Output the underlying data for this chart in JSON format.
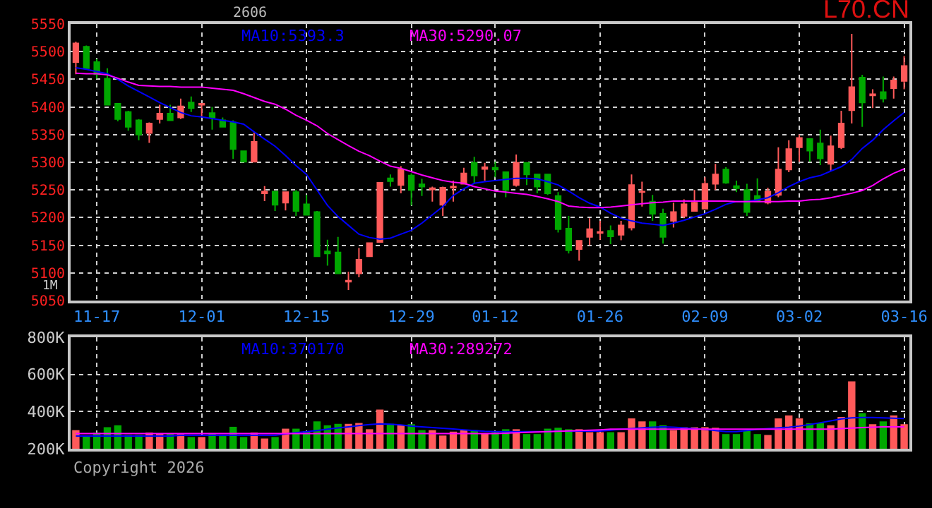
{
  "chart_data": [
    {
      "type": "candlestick",
      "title": "L70.CN",
      "subtitle": "2606",
      "annotations": [
        "1M"
      ],
      "categories": [
        null,
        null,
        "11-17",
        null,
        null,
        null,
        null,
        null,
        null,
        null,
        null,
        null,
        "12-01",
        null,
        null,
        null,
        null,
        null,
        null,
        null,
        null,
        null,
        "12-15",
        null,
        null,
        null,
        null,
        null,
        null,
        null,
        null,
        null,
        "12-29",
        null,
        null,
        null,
        null,
        null,
        null,
        null,
        "01-12",
        null,
        null,
        null,
        null,
        null,
        null,
        null,
        null,
        null,
        "01-26",
        null,
        null,
        null,
        null,
        null,
        null,
        null,
        null,
        null,
        "02-09",
        null,
        null,
        null,
        null,
        null,
        null,
        null,
        null,
        "03-02",
        null,
        null,
        null,
        null,
        null,
        null,
        null,
        null,
        null,
        "03-16"
      ],
      "ohlc": [
        [
          5481,
          5518,
          5459,
          5515
        ],
        [
          5509,
          5511,
          5467,
          5470
        ],
        [
          5481,
          5487,
          5451,
          5459
        ],
        [
          5451,
          5470,
          5404,
          5404
        ],
        [
          5406,
          5406,
          5374,
          5378
        ],
        [
          5391,
          5393,
          5357,
          5364
        ],
        [
          5376,
          5378,
          5340,
          5350
        ],
        [
          5353,
          5372,
          5335,
          5370
        ],
        [
          5378,
          5404,
          5370,
          5388
        ],
        [
          5388,
          5404,
          5376,
          5376
        ],
        [
          5381,
          5415,
          5378,
          5401
        ],
        [
          5408,
          5419,
          5391,
          5398
        ],
        [
          5404,
          5406,
          5382,
          5406
        ],
        [
          5389,
          5400,
          5359,
          5381
        ],
        [
          5376,
          5381,
          5364,
          5364
        ],
        [
          5372,
          5376,
          5306,
          5324
        ],
        [
          5320,
          5320,
          5301,
          5301
        ],
        [
          5301,
          5354,
          5301,
          5337
        ],
        [
          5244,
          5257,
          5230,
          5247
        ],
        [
          5247,
          5247,
          5212,
          5223
        ],
        [
          5227,
          5246,
          5213,
          5246
        ],
        [
          5246,
          5250,
          5203,
          5212
        ],
        [
          5224,
          5241,
          5205,
          5205
        ],
        [
          5210,
          5212,
          5130,
          5130
        ],
        [
          5139,
          5160,
          5113,
          5135
        ],
        [
          5137,
          5165,
          5099,
          5099
        ],
        [
          5084,
          5102,
          5069,
          5086
        ],
        [
          5099,
          5145,
          5092,
          5124
        ],
        [
          5130,
          5154,
          5130,
          5154
        ],
        [
          5156,
          5263,
          5156,
          5263
        ],
        [
          5271,
          5278,
          5256,
          5266
        ],
        [
          5259,
          5293,
          5244,
          5287
        ],
        [
          5276,
          5280,
          5222,
          5250
        ],
        [
          5260,
          5270,
          5239,
          5256
        ],
        [
          5251,
          5256,
          5229,
          5253
        ],
        [
          5223,
          5256,
          5203,
          5254
        ],
        [
          5254,
          5267,
          5229,
          5256
        ],
        [
          5261,
          5290,
          5261,
          5280
        ],
        [
          5299,
          5310,
          5263,
          5276
        ],
        [
          5288,
          5299,
          5267,
          5291
        ],
        [
          5290,
          5301,
          5273,
          5287
        ],
        [
          5282,
          5282,
          5237,
          5250
        ],
        [
          5259,
          5314,
          5256,
          5299
        ],
        [
          5299,
          5299,
          5259,
          5278
        ],
        [
          5278,
          5278,
          5244,
          5256
        ],
        [
          5278,
          5278,
          5241,
          5244
        ],
        [
          5239,
          5246,
          5173,
          5179
        ],
        [
          5180,
          5203,
          5135,
          5141
        ],
        [
          5143,
          5158,
          5122,
          5158
        ],
        [
          5165,
          5199,
          5150,
          5179
        ],
        [
          5172,
          5194,
          5160,
          5174
        ],
        [
          5176,
          5186,
          5152,
          5166
        ],
        [
          5169,
          5194,
          5159,
          5186
        ],
        [
          5182,
          5278,
          5177,
          5259
        ],
        [
          5246,
          5265,
          5220,
          5247
        ],
        [
          5229,
          5241,
          5194,
          5207
        ],
        [
          5207,
          5216,
          5153,
          5165
        ],
        [
          5194,
          5227,
          5182,
          5210
        ],
        [
          5203,
          5233,
          5199,
          5224
        ],
        [
          5212,
          5250,
          5212,
          5227
        ],
        [
          5216,
          5273,
          5216,
          5261
        ],
        [
          5261,
          5297,
          5250,
          5278
        ],
        [
          5287,
          5291,
          5261,
          5263
        ],
        [
          5257,
          5267,
          5246,
          5253
        ],
        [
          5250,
          5261,
          5203,
          5210
        ],
        [
          5239,
          5271,
          5229,
          5229
        ],
        [
          5227,
          5254,
          5224,
          5247
        ],
        [
          5241,
          5327,
          5237,
          5287
        ],
        [
          5287,
          5340,
          5282,
          5324
        ],
        [
          5327,
          5350,
          5301,
          5344
        ],
        [
          5342,
          5342,
          5301,
          5321
        ],
        [
          5334,
          5359,
          5295,
          5307
        ],
        [
          5297,
          5348,
          5284,
          5329
        ],
        [
          5327,
          5393,
          5324,
          5370
        ],
        [
          5394,
          5532,
          5370,
          5436
        ],
        [
          5453,
          5458,
          5364,
          5408
        ],
        [
          5421,
          5432,
          5398,
          5423
        ],
        [
          5427,
          5455,
          5408,
          5415
        ],
        [
          5434,
          5455,
          5415,
          5448
        ],
        [
          5447,
          5492,
          5432,
          5474
        ]
      ],
      "colors": [
        "#ff5a5a",
        "#00a800",
        "#00a800",
        "#00a800",
        "#00a800",
        "#00a800",
        "#00a800",
        "#ff5a5a",
        "#ff5a5a",
        "#00a800",
        "#ff5a5a",
        "#00a800",
        "#ff5a5a",
        "#00a800",
        "#00a800",
        "#00a800",
        "#00a800",
        "#ff5a5a",
        "#ff5a5a",
        "#00a800",
        "#ff5a5a",
        "#00a800",
        "#00a800",
        "#00a800",
        "#00a800",
        "#00a800",
        "#ff5a5a",
        "#ff5a5a",
        "#ff5a5a",
        "#ff5a5a",
        "#00a800",
        "#ff5a5a",
        "#00a800",
        "#00a800",
        "#ff5a5a",
        "#ff5a5a",
        "#ff5a5a",
        "#ff5a5a",
        "#00a800",
        "#ff5a5a",
        "#00a800",
        "#00a800",
        "#ff5a5a",
        "#00a800",
        "#00a800",
        "#00a800",
        "#00a800",
        "#00a800",
        "#ff5a5a",
        "#ff5a5a",
        "#ff5a5a",
        "#00a800",
        "#ff5a5a",
        "#ff5a5a",
        "#ff5a5a",
        "#00a800",
        "#00a800",
        "#ff5a5a",
        "#ff5a5a",
        "#ff5a5a",
        "#ff5a5a",
        "#ff5a5a",
        "#00a800",
        "#00a800",
        "#00a800",
        "#00a800",
        "#ff5a5a",
        "#ff5a5a",
        "#ff5a5a",
        "#ff5a5a",
        "#00a800",
        "#00a800",
        "#ff5a5a",
        "#ff5a5a",
        "#ff5a5a",
        "#00a800",
        "#ff5a5a",
        "#00a800",
        "#ff5a5a",
        "#ff5a5a"
      ],
      "series": [
        {
          "type": "line",
          "name": "MA10:5393.3",
          "color": "#0000ff",
          "values": [
            5471,
            5468,
            5464,
            5460,
            5450,
            5438,
            5428,
            5418,
            5408,
            5399,
            5390,
            5384,
            5382,
            5379,
            5376,
            5373,
            5369,
            5355,
            5342,
            5329,
            5312,
            5294,
            5278,
            5250,
            5222,
            5202,
            5186,
            5170,
            5164,
            5161,
            5163,
            5170,
            5177,
            5190,
            5205,
            5220,
            5240,
            5252,
            5262,
            5265,
            5267,
            5269,
            5271,
            5271,
            5270,
            5265,
            5259,
            5248,
            5236,
            5226,
            5219,
            5208,
            5199,
            5194,
            5190,
            5188,
            5186,
            5190,
            5195,
            5201,
            5207,
            5215,
            5224,
            5229,
            5229,
            5232,
            5236,
            5245,
            5256,
            5265,
            5272,
            5276,
            5284,
            5292,
            5305,
            5325,
            5340,
            5359,
            5375,
            5390
          ]
        },
        {
          "type": "line",
          "name": "MA30:5290.07",
          "color": "#ff00ff",
          "values": [
            5461,
            5460,
            5460,
            5458,
            5452,
            5445,
            5439,
            5438,
            5437,
            5437,
            5436,
            5436,
            5436,
            5434,
            5432,
            5430,
            5424,
            5417,
            5410,
            5405,
            5396,
            5385,
            5376,
            5366,
            5352,
            5341,
            5330,
            5320,
            5312,
            5302,
            5293,
            5289,
            5283,
            5277,
            5272,
            5267,
            5264,
            5262,
            5256,
            5252,
            5248,
            5246,
            5244,
            5242,
            5238,
            5234,
            5229,
            5221,
            5219,
            5218,
            5218,
            5219,
            5221,
            5223,
            5225,
            5227,
            5228,
            5230,
            5230,
            5230,
            5230,
            5230,
            5230,
            5229,
            5229,
            5229,
            5229,
            5229,
            5230,
            5230,
            5232,
            5233,
            5236,
            5240,
            5244,
            5249,
            5258,
            5270,
            5280,
            5288
          ]
        }
      ],
      "ylim": [
        5050,
        5550
      ],
      "yticks": [
        5050,
        5100,
        5150,
        5200,
        5250,
        5300,
        5350,
        5400,
        5450,
        5500,
        5550
      ],
      "grid": true
    },
    {
      "type": "bar",
      "annotations": [
        "Copyright 2026"
      ],
      "tick_labels": "y",
      "categories": [
        null,
        null,
        null,
        null,
        null,
        null,
        null,
        null,
        null,
        null,
        null,
        null,
        null,
        null,
        null,
        null,
        null,
        null,
        null,
        null,
        null,
        null,
        null,
        null,
        null,
        null,
        null,
        null,
        null,
        null,
        null,
        null,
        null,
        null,
        null,
        null,
        null,
        null,
        null,
        null,
        null,
        null,
        null,
        null,
        null,
        null,
        null,
        null,
        null,
        null,
        null,
        null,
        null,
        null,
        null,
        null,
        null,
        null,
        null,
        null,
        null,
        null,
        null,
        null,
        null,
        null,
        null,
        null,
        null,
        null,
        null,
        null,
        null,
        null,
        null,
        null,
        null,
        null,
        null,
        null
      ],
      "values": [
        300000,
        268000,
        287000,
        316000,
        326000,
        274000,
        274000,
        287000,
        279000,
        279000,
        279000,
        263000,
        263000,
        284000,
        268000,
        318000,
        263000,
        287000,
        255000,
        263000,
        308000,
        308000,
        295000,
        347000,
        326000,
        334000,
        334000,
        339000,
        305000,
        411000,
        334000,
        326000,
        332000,
        300000,
        300000,
        271000,
        292000,
        300000,
        300000,
        284000,
        289000,
        305000,
        305000,
        279000,
        279000,
        308000,
        313000,
        305000,
        305000,
        289000,
        289000,
        289000,
        289000,
        363000,
        347000,
        347000,
        326000,
        300000,
        316000,
        316000,
        316000,
        313000,
        279000,
        279000,
        295000,
        279000,
        274000,
        363000,
        379000,
        363000,
        337000,
        339000,
        326000,
        371000,
        563000,
        392000,
        332000,
        347000,
        379000,
        332000
      ],
      "colors": [
        "#ff5a5a",
        "#00a800",
        "#00a800",
        "#00a800",
        "#00a800",
        "#00a800",
        "#00a800",
        "#ff5a5a",
        "#ff5a5a",
        "#00a800",
        "#ff5a5a",
        "#00a800",
        "#ff5a5a",
        "#00a800",
        "#00a800",
        "#00a800",
        "#00a800",
        "#ff5a5a",
        "#ff5a5a",
        "#00a800",
        "#ff5a5a",
        "#00a800",
        "#00a800",
        "#00a800",
        "#00a800",
        "#00a800",
        "#ff5a5a",
        "#ff5a5a",
        "#ff5a5a",
        "#ff5a5a",
        "#00a800",
        "#ff5a5a",
        "#00a800",
        "#00a800",
        "#ff5a5a",
        "#ff5a5a",
        "#ff5a5a",
        "#ff5a5a",
        "#00a800",
        "#ff5a5a",
        "#00a800",
        "#00a800",
        "#ff5a5a",
        "#00a800",
        "#00a800",
        "#00a800",
        "#00a800",
        "#00a800",
        "#ff5a5a",
        "#ff5a5a",
        "#ff5a5a",
        "#00a800",
        "#ff5a5a",
        "#ff5a5a",
        "#ff5a5a",
        "#00a800",
        "#00a800",
        "#ff5a5a",
        "#ff5a5a",
        "#ff5a5a",
        "#ff5a5a",
        "#ff5a5a",
        "#00a800",
        "#00a800",
        "#00a800",
        "#00a800",
        "#ff5a5a",
        "#ff5a5a",
        "#ff5a5a",
        "#ff5a5a",
        "#00a800",
        "#00a800",
        "#ff5a5a",
        "#ff5a5a",
        "#ff5a5a",
        "#00a800",
        "#ff5a5a",
        "#00a800",
        "#ff5a5a",
        "#ff5a5a"
      ],
      "series": [
        {
          "type": "line",
          "name": "MA10:370170",
          "color": "#0000ff",
          "values": [
            268000,
            268000,
            268000,
            268000,
            268000,
            268000,
            268000,
            268000,
            268000,
            268000,
            272000,
            272000,
            272000,
            272000,
            272000,
            272000,
            272000,
            272000,
            272000,
            272000,
            280000,
            286000,
            292000,
            298000,
            305000,
            312000,
            318000,
            324000,
            330000,
            334000,
            332000,
            328000,
            322000,
            318000,
            314000,
            310000,
            306000,
            302000,
            298000,
            294000,
            292000,
            292000,
            292000,
            292000,
            292000,
            292000,
            295000,
            295000,
            295000,
            295000,
            295000,
            300000,
            305000,
            308000,
            312000,
            316000,
            318000,
            316000,
            312000,
            308000,
            304000,
            298000,
            292000,
            292000,
            298000,
            304000,
            308000,
            312000,
            316000,
            322000,
            330000,
            340000,
            350000,
            360000,
            366000,
            368000,
            368000,
            366000,
            364000,
            362000
          ]
        },
        {
          "type": "line",
          "name": "MA30:289272",
          "color": "#ff00ff",
          "values": [
            282000,
            282000,
            282000,
            282000,
            282000,
            282000,
            282000,
            282000,
            282000,
            282000,
            282000,
            282000,
            282000,
            282000,
            282000,
            282000,
            282000,
            282000,
            282000,
            282000,
            282000,
            282000,
            282000,
            282000,
            282000,
            282000,
            282000,
            282000,
            282000,
            282000,
            282000,
            282000,
            282000,
            282000,
            282000,
            282000,
            282000,
            282000,
            282000,
            282000,
            282000,
            284000,
            286000,
            288000,
            290000,
            292000,
            294000,
            296000,
            298000,
            300000,
            302000,
            305000,
            305000,
            305000,
            305000,
            305000,
            305000,
            305000,
            305000,
            305000,
            305000,
            305000,
            305000,
            305000,
            305000,
            305000,
            305000,
            305000,
            305000,
            305000,
            305000,
            305000,
            305000,
            308000,
            311000,
            314000,
            316000,
            318000,
            318000,
            318000
          ]
        }
      ],
      "ylim": [
        200000,
        800000
      ],
      "yticks": [
        {
          "value": 200000,
          "label": "200K"
        },
        {
          "value": 400000,
          "label": "400K"
        },
        {
          "value": 600000,
          "label": "600K"
        },
        {
          "value": 800000,
          "label": "800K"
        }
      ],
      "grid": true
    }
  ]
}
